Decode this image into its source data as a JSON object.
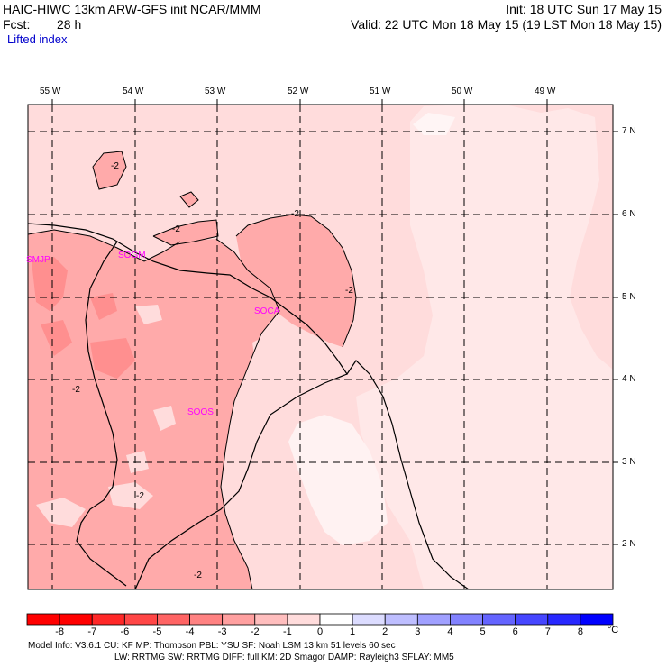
{
  "header": {
    "model": "HAIC-HIWC 13km ARW-GFS init   NCAR/MMM",
    "forecast_label": "Fcst:",
    "forecast_value": "28 h",
    "init": "Init: 18 UTC Sun 17 May 15",
    "valid": "Valid: 22 UTC Mon 18 May 15 (19 LST Mon 18 May 15)",
    "field": "Lifted index"
  },
  "map": {
    "lon_labels": [
      "55 W",
      "54 W",
      "53 W",
      "52 W",
      "51 W",
      "50 W",
      "49 W"
    ],
    "lat_labels": [
      "7 N",
      "6 N",
      "5 N",
      "4 N",
      "3 N",
      "2 N"
    ],
    "stations": [
      "SMJP",
      "SOGM",
      "SOCA",
      "SOOS"
    ],
    "contour_labels": [
      "-2",
      "-2",
      "-2",
      "-2",
      "-2",
      "-2",
      "-2"
    ]
  },
  "colorbar": {
    "labels": [
      "-8",
      "-7",
      "-6",
      "-5",
      "-4",
      "-3",
      "-2",
      "-1",
      "0",
      "1",
      "2",
      "3",
      "4",
      "5",
      "6",
      "7",
      "8"
    ],
    "unit": "°C",
    "colors": [
      "#ff0000",
      "#ff2828",
      "#ff4646",
      "#ff6464",
      "#ff8282",
      "#ffa0a0",
      "#ffbebe",
      "#ffdcdc",
      "#ffffff",
      "#dcdcff",
      "#bebeff",
      "#a0a0ff",
      "#8282ff",
      "#6464ff",
      "#4646ff",
      "#2828ff",
      "#0000ff"
    ]
  },
  "footer": {
    "line1": "Model Info: V3.6.1    CU: KF       MP: Thompson     PBL: YSU      SF: Noah LSM     13 km    51 levels   60 sec",
    "line2": "LW: RRTMG     SW: RRTMG   DIFF: full     KM: 2D Smagor DAMP: Rayleigh3   SFLAY: MM5"
  }
}
